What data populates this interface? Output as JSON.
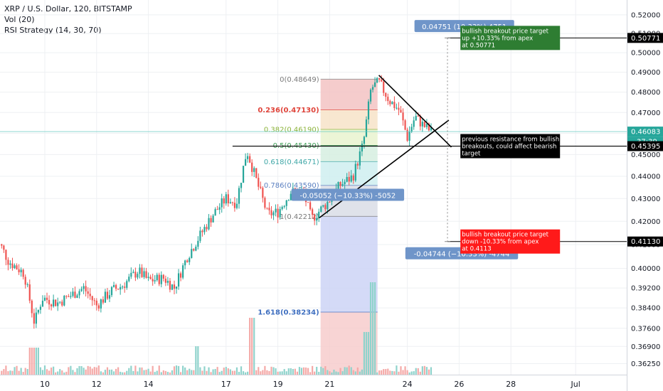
{
  "legend": {
    "symbol": "XRP / U.S. Dollar, 120, BITSTAMP",
    "volume": "Vol (20)",
    "strategy": "RSI Strategy (14, 30, 70)"
  },
  "colors": {
    "up": "#26a69a",
    "down": "#ef5350",
    "vol_up": "#8fd3cc",
    "vol_down": "#f4a9a7",
    "target_up_box": "#2e7d32",
    "target_down_box": "#ff1a1a",
    "measure_box": "#6f95c9",
    "fib_0": "#f3c3c3",
    "fib_236": "#f7e3c8",
    "fib_382": "#e9f3cf",
    "fib_5": "#d6efe0",
    "fib_618": "#cfeef0",
    "fib_786": "#d9dde6",
    "fib_1": "#e4e4e4",
    "fib_ext": "#cdd3f6"
  },
  "chart_data": {
    "type": "candlestick",
    "title": "XRP / U.S. Dollar, 120, BITSTAMP",
    "y_axis": {
      "ticks": [
        0.52,
        0.51,
        0.5,
        0.49,
        0.48,
        0.47,
        0.46,
        0.45,
        0.44,
        0.43,
        0.42,
        0.41,
        0.4,
        0.392,
        0.384,
        0.376,
        0.369,
        0.3625
      ],
      "tick_labels": [
        "0.52000",
        "0.51000",
        "0.50000",
        "0.49000",
        "0.48000",
        "0.47000",
        "0.46000",
        "0.45000",
        "0.44000",
        "0.43000",
        "0.42000",
        "0.41000",
        "0.40000",
        "0.39200",
        "0.38400",
        "0.37600",
        "0.36900",
        "0.36250"
      ],
      "scale": "log",
      "range": [
        0.3605,
        0.523
      ]
    },
    "x_axis": {
      "tick_labels": [
        "10",
        "12",
        "14",
        "17",
        "19",
        "21",
        "24",
        "26",
        "28",
        "Jul"
      ],
      "range_days": [
        8.0,
        30.7
      ]
    },
    "price_labels": {
      "current": "0.46083",
      "countdown": "37:39",
      "upper_target": "0.50771",
      "resistance": "0.45395",
      "lower_target": "0.41130"
    },
    "price_marks": {
      "current": 0.46083,
      "upper_target": 0.50771,
      "resistance": 0.45395,
      "lower_target": 0.4113
    },
    "candles_anchor": [
      [
        8.0,
        0.416
      ],
      [
        8.6,
        0.403
      ],
      [
        9.2,
        0.398
      ],
      [
        9.6,
        0.378
      ],
      [
        9.9,
        0.388
      ],
      [
        10.5,
        0.386
      ],
      [
        11.5,
        0.392
      ],
      [
        12.0,
        0.385
      ],
      [
        12.6,
        0.391
      ],
      [
        13.0,
        0.393
      ],
      [
        13.6,
        0.399
      ],
      [
        14.0,
        0.395
      ],
      [
        14.6,
        0.396
      ],
      [
        15.0,
        0.392
      ],
      [
        15.5,
        0.405
      ],
      [
        16.0,
        0.414
      ],
      [
        16.5,
        0.423
      ],
      [
        17.0,
        0.43
      ],
      [
        17.4,
        0.428
      ],
      [
        17.8,
        0.452
      ],
      [
        18.2,
        0.437
      ],
      [
        18.6,
        0.423
      ],
      [
        19.0,
        0.424
      ],
      [
        19.5,
        0.433
      ],
      [
        20.0,
        0.432
      ],
      [
        20.3,
        0.421
      ],
      [
        20.9,
        0.428
      ],
      [
        21.4,
        0.436
      ],
      [
        21.9,
        0.44
      ],
      [
        22.3,
        0.455
      ],
      [
        22.6,
        0.482
      ],
      [
        22.9,
        0.485
      ],
      [
        23.3,
        0.476
      ],
      [
        23.7,
        0.471
      ],
      [
        24.0,
        0.458
      ],
      [
        24.3,
        0.468
      ],
      [
        24.6,
        0.464
      ],
      [
        24.9,
        0.461
      ]
    ],
    "fib_levels": [
      {
        "label": "0(0.48649)",
        "value": 0.48649
      },
      {
        "label": "0.236(0.47130)",
        "value": 0.4713
      },
      {
        "label": "0.382(0.46190)",
        "value": 0.4619
      },
      {
        "label": "0.5(0.45430)",
        "value": 0.4543
      },
      {
        "label": "0.618(0.44671)",
        "value": 0.44671
      },
      {
        "label": "0.786(0.43590)",
        "value": 0.4359
      },
      {
        "label": "1(0.42212)",
        "value": 0.42212
      },
      {
        "label": "1.618(0.38234)",
        "value": 0.38234
      }
    ],
    "fib_days": [
      20.65,
      22.85
    ],
    "triangle": {
      "upper": [
        [
          22.9,
          0.4885
        ],
        [
          25.7,
          0.4535
        ]
      ],
      "lower": [
        [
          20.6,
          0.4215
        ],
        [
          25.6,
          0.4663
        ]
      ]
    },
    "resistance_line": {
      "value": 0.45395,
      "from_day": 17.25
    },
    "measures": [
      {
        "text": "0.04751 (10.33%) 4751",
        "day": 26.2,
        "value": 0.5138
      },
      {
        "text": "-0.05052 (−10.33%) -5052",
        "day": 21.7,
        "value": 0.4315
      },
      {
        "text": "-0.04744 (−10.33%) -4744",
        "day": 26.1,
        "value": 0.4062
      }
    ],
    "target_span": {
      "day": 25.55,
      "top": 0.50771,
      "bottom": 0.4113
    },
    "notes": [
      {
        "lines": [
          "bullish breakout price target",
          "up +10.33% from apex",
          "at 0.50771"
        ],
        "style": "green",
        "day": 26.05,
        "value": 0.50771
      },
      {
        "lines": [
          "previous resistance from bullish",
          "breakouts, could affect bearish",
          "target"
        ],
        "style": "black",
        "day": 26.05,
        "value": 0.45395
      },
      {
        "lines": [
          "bullish breakout price target",
          "down -10.33% from apex",
          "at 0.4113"
        ],
        "style": "red",
        "day": 26.05,
        "value": 0.4113
      }
    ]
  }
}
